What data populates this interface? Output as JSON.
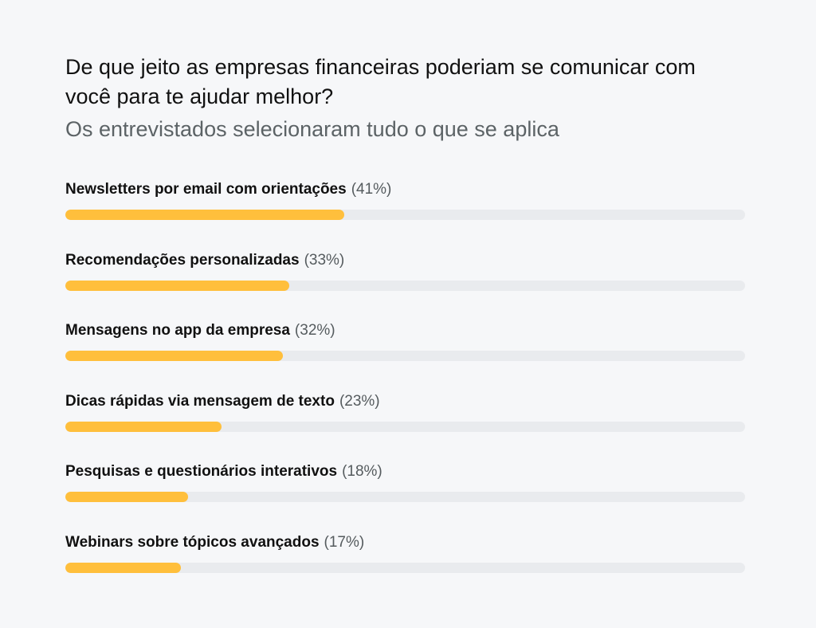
{
  "title": "De que jeito as empresas financeiras poderiam se comunicar com você para te ajudar melhor?",
  "subtitle": "Os entrevistados selecionaram tudo o que se aplica",
  "colors": {
    "bar_fill": "#ffbf3c",
    "bar_track": "#e9ebee",
    "background": "#f6f7f9"
  },
  "chart_data": {
    "type": "bar",
    "orientation": "horizontal",
    "unit": "%",
    "xlim": [
      0,
      100
    ],
    "grid": false,
    "categories": [
      "Newsletters por email com orientações",
      "Recomendações personalizadas",
      "Mensagens no app da empresa",
      "Dicas rápidas via mensagem de texto",
      "Pesquisas e questionários interativos",
      "Webinars sobre tópicos avançados"
    ],
    "values": [
      41,
      33,
      32,
      23,
      18,
      17
    ],
    "value_labels": [
      "(41%)",
      "(33%)",
      "(32%)",
      "(23%)",
      "(18%)",
      "(17%)"
    ]
  }
}
